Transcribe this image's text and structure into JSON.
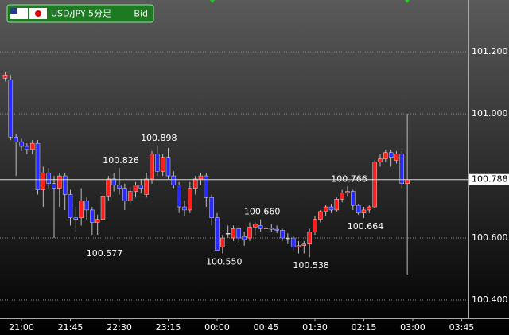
{
  "chart_data": {
    "type": "candlestick",
    "title": "USD/JPY 5分足",
    "subtitle": "Bid",
    "categories": [
      null,
      null,
      null,
      "21:00",
      null,
      null,
      null,
      null,
      null,
      null,
      null,
      null,
      "21:45",
      null,
      null,
      null,
      null,
      null,
      null,
      null,
      null,
      "22:30",
      null,
      null,
      null,
      null,
      null,
      null,
      null,
      null,
      "23:15",
      null,
      null,
      null,
      null,
      null,
      null,
      null,
      null,
      "00:00",
      null,
      null,
      null,
      null,
      null,
      null,
      null,
      null,
      "00:45",
      null,
      null,
      null,
      null,
      null,
      null,
      null,
      null,
      "01:30",
      null,
      null,
      null,
      null,
      null,
      null,
      null,
      null,
      "02:15",
      null,
      null,
      null,
      null,
      null,
      null,
      null,
      null,
      "03:00",
      null,
      null,
      null,
      null,
      null,
      null,
      null,
      null,
      "03:45"
    ],
    "open": [
      101.115,
      101.11,
      100.925,
      100.91,
      100.895,
      100.885,
      100.905,
      100.755,
      100.81,
      100.775,
      100.76,
      100.8,
      100.74,
      100.665,
      100.665,
      100.72,
      100.69,
      100.65,
      100.66,
      100.735,
      100.79,
      100.77,
      100.76,
      100.72,
      100.75,
      100.77,
      100.74,
      100.79,
      100.87,
      100.815,
      100.86,
      100.8,
      100.77,
      100.7,
      100.69,
      100.76,
      100.79,
      100.8,
      100.73,
      100.665,
      100.57,
      100.615,
      100.6,
      100.63,
      100.605,
      100.6,
      100.635,
      100.64,
      100.63,
      100.632,
      100.628,
      100.625,
      100.6,
      100.6,
      100.57,
      100.575,
      100.58,
      100.62,
      100.66,
      100.685,
      100.7,
      100.69,
      100.725,
      100.745,
      100.75,
      100.705,
      100.68,
      100.69,
      100.7,
      100.845,
      100.855,
      100.875,
      100.85,
      100.87,
      100.775,
      null,
      null,
      null,
      null,
      null,
      null,
      null,
      null,
      null,
      null
    ],
    "high": [
      101.135,
      101.125,
      100.935,
      100.92,
      100.905,
      100.915,
      100.915,
      100.83,
      100.825,
      100.8,
      100.81,
      100.81,
      100.755,
      100.7,
      100.76,
      100.73,
      100.7,
      100.675,
      100.745,
      100.8,
      100.81,
      100.826,
      100.775,
      100.765,
      100.78,
      100.79,
      100.81,
      100.88,
      100.898,
      100.87,
      100.89,
      100.815,
      100.78,
      100.72,
      100.78,
      100.8,
      100.81,
      100.81,
      100.74,
      100.68,
      100.61,
      100.64,
      100.64,
      100.64,
      100.62,
      100.65,
      100.65,
      100.66,
      100.645,
      100.645,
      100.64,
      100.63,
      100.615,
      100.605,
      100.59,
      100.59,
      100.63,
      100.67,
      100.69,
      100.705,
      100.71,
      100.73,
      100.755,
      100.766,
      100.755,
      100.71,
      100.7,
      100.705,
      100.85,
      100.87,
      100.885,
      100.885,
      100.88,
      100.88,
      101.0,
      null,
      null,
      null,
      null,
      null,
      null,
      null,
      null,
      null,
      null
    ],
    "low": [
      101.105,
      100.915,
      100.8,
      100.88,
      100.87,
      100.87,
      100.74,
      100.7,
      100.76,
      100.6,
      100.7,
      100.69,
      100.64,
      100.62,
      100.64,
      100.66,
      100.61,
      100.61,
      100.577,
      100.72,
      100.75,
      100.74,
      100.69,
      100.71,
      100.73,
      100.745,
      100.73,
      100.775,
      100.8,
      100.8,
      100.79,
      100.76,
      100.68,
      100.67,
      100.68,
      100.74,
      100.77,
      100.7,
      100.64,
      100.56,
      100.55,
      100.6,
      100.59,
      100.585,
      100.575,
      100.59,
      100.61,
      100.62,
      100.62,
      100.62,
      100.615,
      100.59,
      100.58,
      100.56,
      100.55,
      100.55,
      100.538,
      100.61,
      100.65,
      100.67,
      100.68,
      100.685,
      100.715,
      100.735,
      100.69,
      100.675,
      100.664,
      100.68,
      100.695,
      100.83,
      100.845,
      100.83,
      100.84,
      100.76,
      100.482,
      null,
      null,
      null,
      null,
      null,
      null,
      null,
      null,
      null,
      null
    ],
    "close": [
      101.125,
      100.925,
      100.91,
      100.895,
      100.885,
      100.905,
      100.755,
      100.81,
      100.775,
      100.76,
      100.8,
      100.74,
      100.665,
      100.66,
      100.72,
      100.69,
      100.65,
      100.66,
      100.735,
      100.79,
      100.77,
      100.76,
      100.72,
      100.75,
      100.77,
      100.76,
      100.79,
      100.87,
      100.815,
      100.86,
      100.8,
      100.77,
      100.7,
      100.69,
      100.76,
      100.79,
      100.8,
      100.73,
      100.665,
      100.56,
      100.6,
      100.615,
      100.63,
      100.6,
      100.595,
      100.635,
      100.645,
      100.63,
      100.632,
      100.628,
      100.625,
      100.6,
      100.6,
      100.57,
      100.575,
      100.58,
      100.62,
      100.66,
      100.685,
      100.7,
      100.69,
      100.725,
      100.745,
      100.75,
      100.705,
      100.68,
      100.69,
      100.7,
      100.845,
      100.855,
      100.875,
      100.86,
      100.87,
      100.775,
      100.788,
      null,
      null,
      null,
      null,
      null,
      null,
      null,
      null,
      null,
      null
    ],
    "high_labels": [
      null,
      null,
      null,
      null,
      null,
      null,
      null,
      null,
      null,
      null,
      null,
      null,
      null,
      null,
      null,
      null,
      null,
      null,
      null,
      null,
      null,
      "100.826",
      null,
      null,
      null,
      null,
      null,
      null,
      "100.898",
      null,
      null,
      null,
      null,
      null,
      null,
      null,
      null,
      null,
      null,
      null,
      null,
      null,
      null,
      null,
      null,
      null,
      null,
      "100.660",
      null,
      null,
      null,
      null,
      null,
      null,
      null,
      null,
      null,
      null,
      null,
      null,
      null,
      null,
      null,
      "100.766",
      null,
      null,
      null,
      null,
      null,
      null,
      null,
      null,
      null,
      null,
      null,
      null,
      null,
      null,
      null,
      null,
      null,
      null,
      null,
      null,
      null
    ],
    "low_labels": [
      null,
      null,
      null,
      null,
      null,
      null,
      null,
      null,
      null,
      null,
      null,
      null,
      null,
      null,
      null,
      null,
      null,
      null,
      "100.577",
      null,
      null,
      null,
      null,
      null,
      null,
      null,
      null,
      null,
      null,
      null,
      null,
      null,
      null,
      null,
      null,
      null,
      null,
      null,
      null,
      null,
      "100.550",
      null,
      null,
      null,
      null,
      null,
      null,
      null,
      null,
      null,
      null,
      null,
      null,
      null,
      null,
      null,
      "100.538",
      null,
      null,
      null,
      null,
      null,
      null,
      null,
      null,
      null,
      "100.664",
      null,
      null,
      null,
      null,
      null,
      null,
      null,
      null,
      null,
      null,
      null,
      null,
      null,
      null,
      null,
      null,
      null,
      null
    ],
    "close_labels": [
      null,
      null,
      null,
      null,
      null,
      null,
      null,
      null,
      null,
      null,
      null,
      null,
      null,
      null,
      null,
      null,
      null,
      null,
      null,
      null,
      null,
      null,
      null,
      null,
      null,
      null,
      null,
      null,
      null,
      null,
      null,
      null,
      null,
      null,
      null,
      null,
      null,
      null,
      null,
      null,
      null,
      null,
      null,
      null,
      null,
      null,
      null,
      null,
      null,
      null,
      null,
      null,
      null,
      null,
      null,
      null,
      null,
      null,
      null,
      null,
      null,
      null,
      null,
      null,
      null,
      null,
      null,
      null,
      null,
      null,
      null,
      null,
      null,
      null,
      "100.788",
      null,
      null,
      null,
      null,
      null,
      null,
      null,
      null,
      null,
      null
    ],
    "ylim": [
      100.341,
      101.367
    ],
    "yticks": [
      {
        "value": 100.4,
        "label": "100.400"
      },
      {
        "value": 100.6,
        "label": "100.600"
      },
      {
        "value": 101.0,
        "label": "101.000"
      },
      {
        "value": 101.2,
        "label": "101.200"
      }
    ],
    "up_color": "#ff1e1e",
    "down_color": "#2a2aff",
    "flat_color": "#d8d800",
    "wick_color": "#bdbdbd",
    "grid": true
  }
}
